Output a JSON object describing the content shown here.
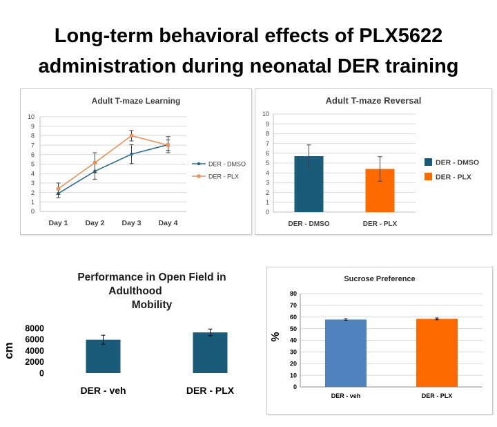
{
  "page_title_line1": "Long-term behavioral effects of PLX5622",
  "page_title_line2": "administration during neonatal DER training",
  "chart_data": [
    {
      "id": "tmaze-learning",
      "type": "line",
      "title": "Adult T-maze Learning",
      "categories": [
        "Day 1",
        "Day 2",
        "Day 3",
        "Day 4"
      ],
      "ylim": [
        0,
        10
      ],
      "yticks": [
        "0",
        "1",
        "2",
        "3",
        "4",
        "5",
        "6",
        "7",
        "8",
        "9",
        "10"
      ],
      "grid": true,
      "legend": "right",
      "series": [
        {
          "name": "DER - DMSO",
          "color": "#2f6a8a",
          "values": [
            1.9,
            4.25,
            6.05,
            7.05
          ],
          "errors": [
            0.45,
            0.85,
            1.0,
            0.85
          ]
        },
        {
          "name": "DER - PLX",
          "color": "#e8925a",
          "values": [
            2.4,
            5.15,
            8.0,
            7.0
          ],
          "errors": [
            0.6,
            1.05,
            0.55,
            0.55
          ]
        }
      ]
    },
    {
      "id": "tmaze-reversal",
      "type": "bar",
      "title": "Adult T-maze Reversal",
      "categories": [
        "DER - DMSO",
        "DER - PLX"
      ],
      "values": [
        5.7,
        4.4
      ],
      "errors": [
        1.15,
        1.25
      ],
      "colors": [
        "#1b5b7a",
        "#ff6a00"
      ],
      "ylim": [
        0,
        10
      ],
      "yticks": [
        "0",
        "1",
        "2",
        "3",
        "4",
        "5",
        "6",
        "7",
        "8",
        "9",
        "10"
      ],
      "grid": true,
      "legend": "right",
      "legend_entries": [
        "DER - DMSO",
        "DER - PLX"
      ]
    },
    {
      "id": "open-field",
      "type": "bar",
      "title_lines": [
        "Performance in Open Field in",
        "Adulthood",
        "Mobility"
      ],
      "categories": [
        "DER - veh",
        "DER - PLX"
      ],
      "values": [
        5950,
        7250
      ],
      "errors": [
        800,
        600
      ],
      "colors": [
        "#1b5b7a",
        "#1b5b7a"
      ],
      "ylim": [
        0,
        8000
      ],
      "yticks": [
        "0",
        "2000",
        "4000",
        "6000",
        "8000"
      ],
      "ylabel": "cm",
      "grid": false
    },
    {
      "id": "sucrose-preference",
      "type": "bar",
      "title": "Sucrose Preference",
      "categories": [
        "DER - veh",
        "DER - PLX"
      ],
      "values": [
        57.8,
        58.4
      ],
      "errors": [
        0.6,
        0.8
      ],
      "colors": [
        "#4f81bd",
        "#ff6a00"
      ],
      "ylim": [
        0,
        80
      ],
      "yticks": [
        "0",
        "10",
        "20",
        "30",
        "40",
        "50",
        "60",
        "70",
        "80"
      ],
      "ylabel": "%",
      "grid": true
    }
  ]
}
